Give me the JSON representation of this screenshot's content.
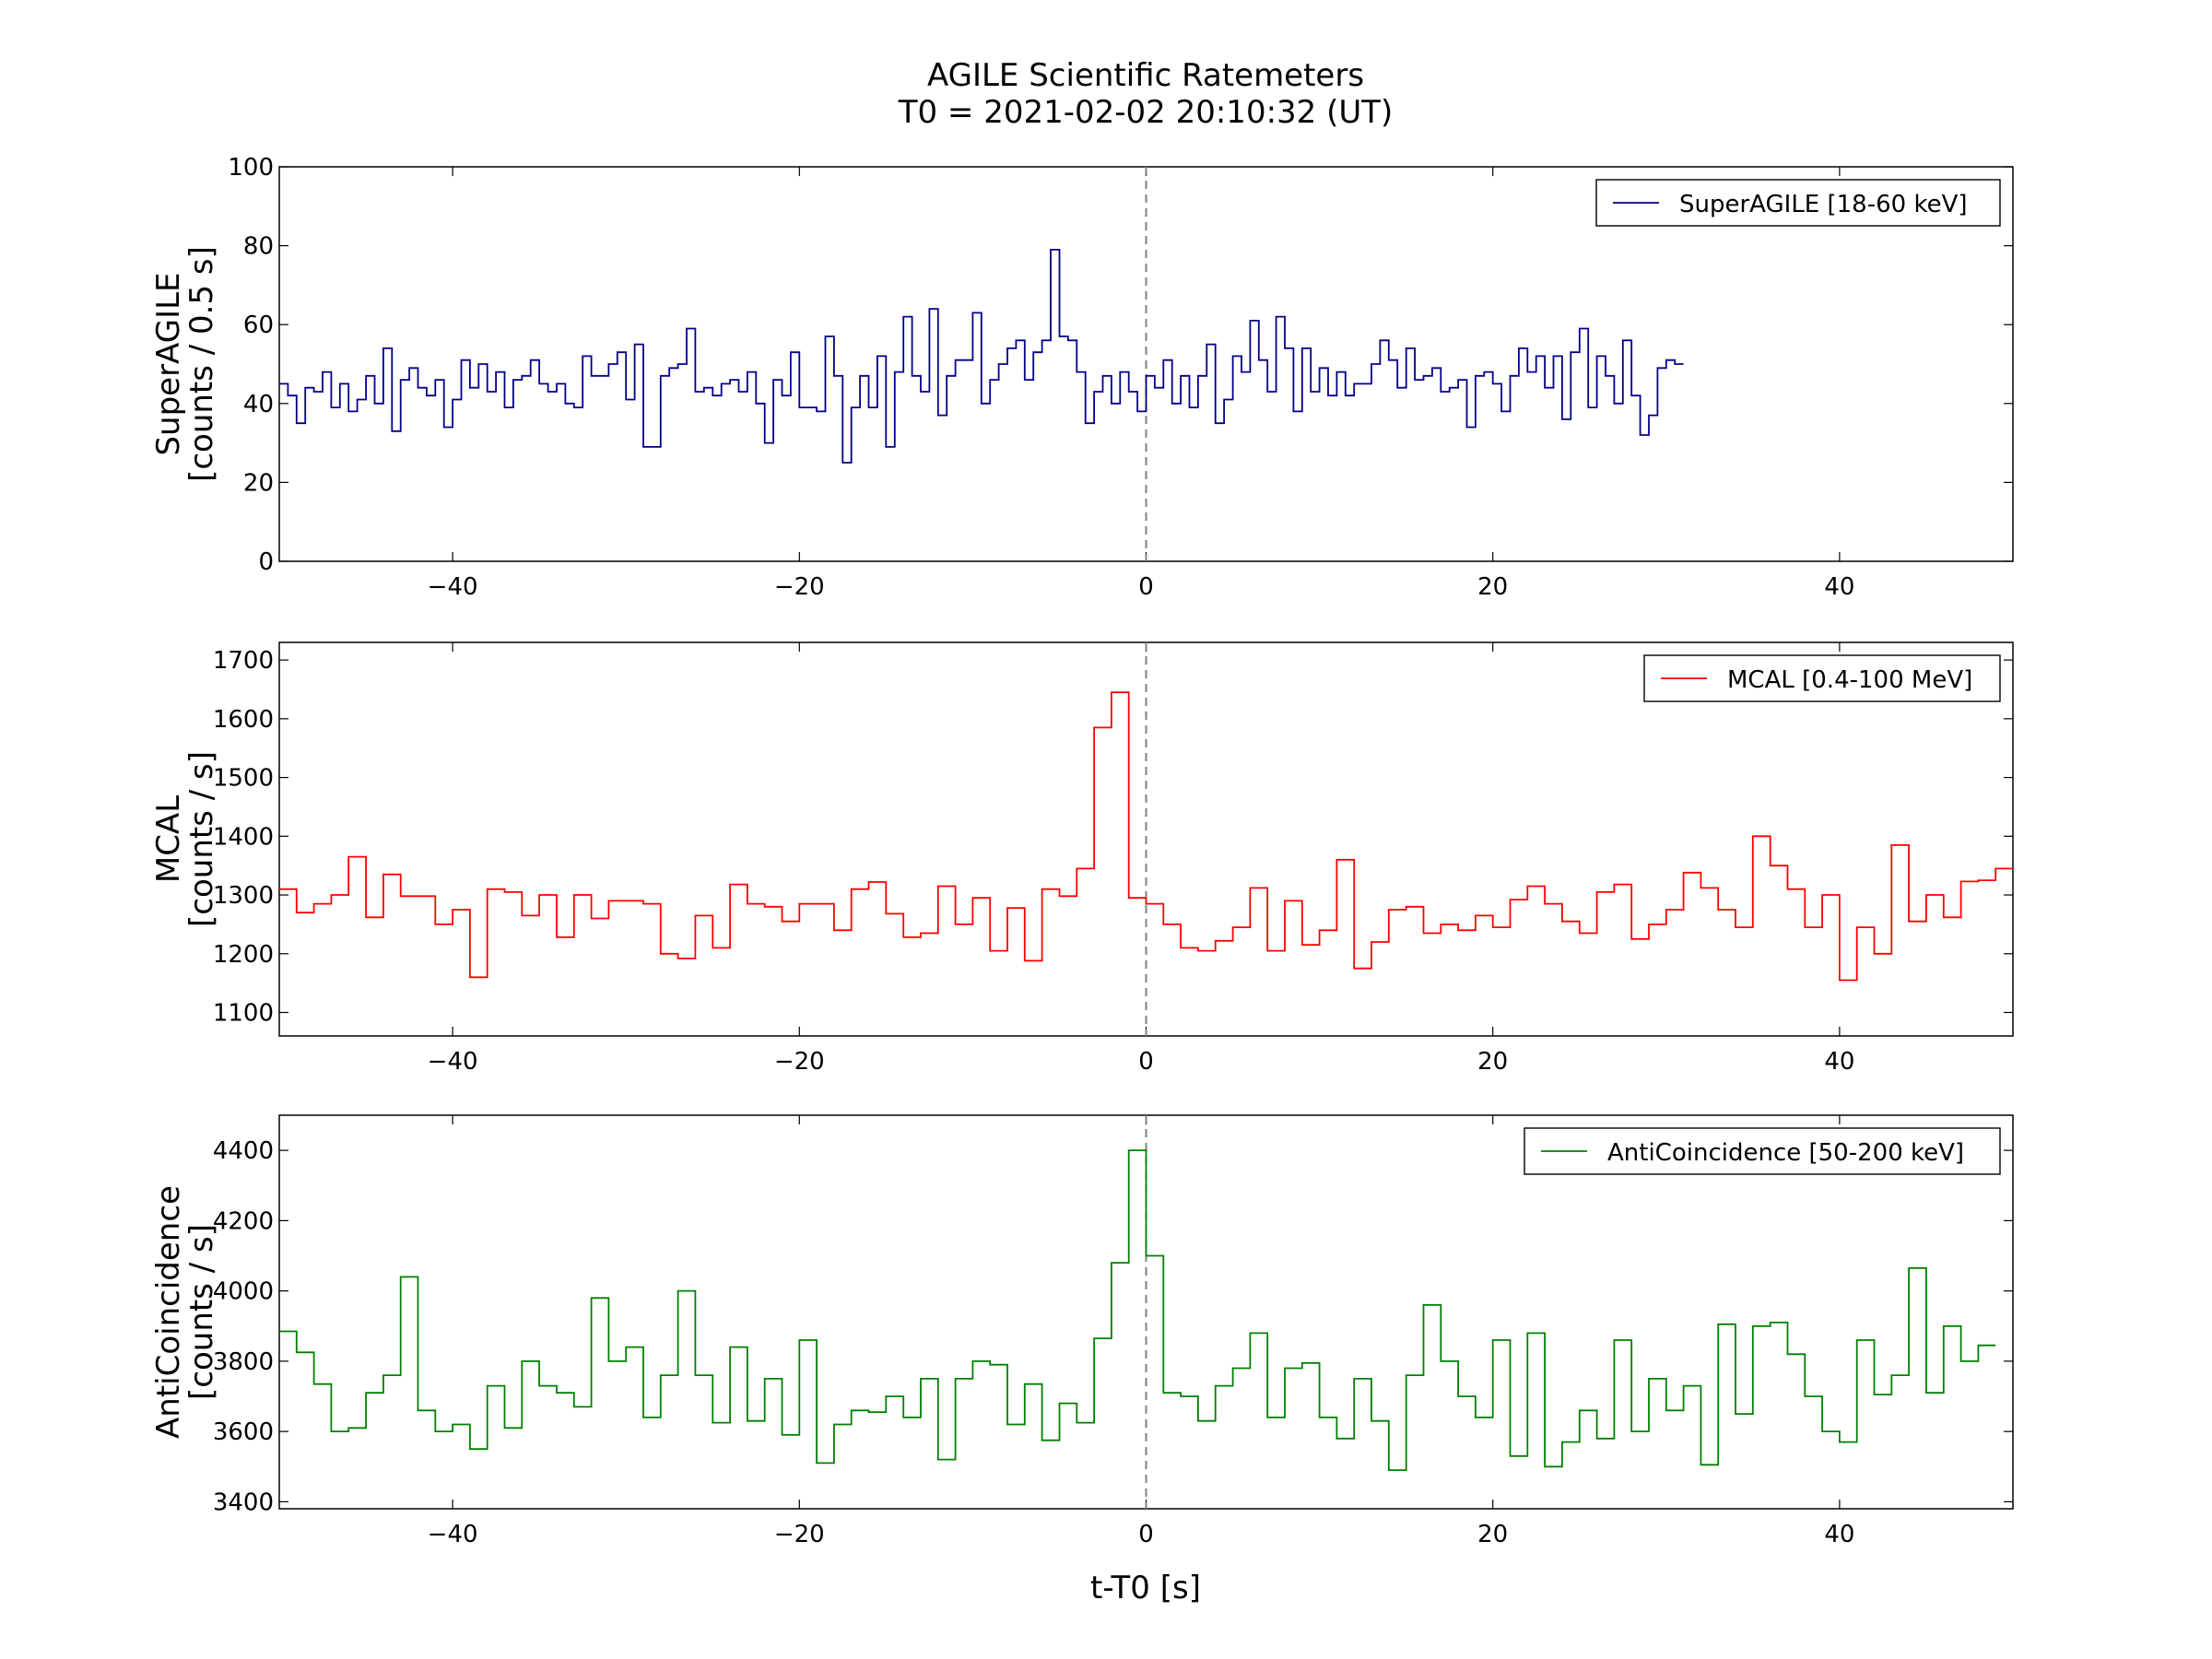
{
  "figure": {
    "title_line1": "AGILE Scientific Ratemeters",
    "title_line2": "T0 = 2021-02-02 20:10:32 (UT)",
    "xlabel": "t-T0 [s]"
  },
  "chart_data": [
    {
      "type": "line",
      "drawstyle": "steps",
      "legend": "SuperAGILE [18-60 keV]",
      "legend_position": "top-right",
      "ylabel_line1": "SuperAGILE",
      "ylabel_line2": "[counts / 0.5 s]",
      "color": "#00008b",
      "xlim": [
        -50,
        50
      ],
      "ylim": [
        0,
        100
      ],
      "xticks": [
        -40,
        -20,
        0,
        20,
        40
      ],
      "yticks": [
        0,
        20,
        40,
        60,
        80,
        100
      ],
      "x_start": -50,
      "bin_width": 0.5,
      "values": [
        45,
        42,
        35,
        44,
        43,
        48,
        39,
        45,
        38,
        41,
        47,
        40,
        54,
        33,
        46,
        49,
        44,
        42,
        46,
        34,
        41,
        51,
        44,
        50,
        43,
        48,
        39,
        46,
        47,
        51,
        45,
        43,
        45,
        40,
        39,
        52,
        47,
        47,
        50,
        53,
        41,
        55,
        29,
        29,
        47,
        49,
        50,
        59,
        43,
        44,
        42,
        45,
        46,
        43,
        48,
        40,
        30,
        46,
        42,
        53,
        39,
        39,
        38,
        57,
        47,
        25,
        39,
        47,
        39,
        52,
        29,
        48,
        62,
        47,
        43,
        64,
        37,
        47,
        51,
        51,
        63,
        40,
        46,
        50,
        54,
        56,
        46,
        53,
        56,
        79,
        57,
        56,
        48,
        35,
        43,
        47,
        40,
        48,
        43,
        38,
        47,
        44,
        51,
        40,
        47,
        39,
        47,
        55,
        35,
        41,
        52,
        48,
        61,
        51,
        43,
        62,
        54,
        38,
        54,
        43,
        49,
        42,
        48,
        42,
        45,
        45,
        50,
        56,
        51,
        44,
        54,
        46,
        47,
        49,
        43,
        44,
        46,
        34,
        47,
        48,
        45,
        38,
        47,
        54,
        48,
        52,
        44,
        52,
        36,
        53,
        59,
        39,
        52,
        47,
        40,
        56,
        42,
        32,
        37,
        49,
        51,
        50
      ]
    },
    {
      "type": "line",
      "drawstyle": "steps",
      "legend": "MCAL [0.4-100 MeV]",
      "legend_position": "top-right",
      "ylabel_line1": "MCAL",
      "ylabel_line2": "[counts / s]",
      "color": "#ff0000",
      "xlim": [
        -50,
        50
      ],
      "ylim": [
        1060,
        1730
      ],
      "xticks": [
        -40,
        -20,
        0,
        20,
        40
      ],
      "yticks": [
        1100,
        1200,
        1300,
        1400,
        1500,
        1600,
        1700
      ],
      "x_start": -50,
      "bin_width": 1.0,
      "values": [
        1310,
        1270,
        1285,
        1300,
        1365,
        1262,
        1335,
        1298,
        1298,
        1250,
        1275,
        1160,
        1310,
        1305,
        1265,
        1300,
        1228,
        1300,
        1260,
        1290,
        1290,
        1285,
        1200,
        1192,
        1265,
        1210,
        1318,
        1285,
        1280,
        1255,
        1285,
        1285,
        1240,
        1310,
        1322,
        1268,
        1228,
        1235,
        1315,
        1250,
        1295,
        1205,
        1278,
        1188,
        1310,
        1298,
        1345,
        1585,
        1645,
        1295,
        1285,
        1250,
        1210,
        1205,
        1222,
        1245,
        1312,
        1205,
        1290,
        1215,
        1240,
        1360,
        1175,
        1220,
        1275,
        1280,
        1235,
        1250,
        1240,
        1265,
        1245,
        1292,
        1315,
        1285,
        1255,
        1235,
        1305,
        1318,
        1225,
        1250,
        1275,
        1338,
        1312,
        1275,
        1245,
        1400,
        1350,
        1310,
        1245,
        1300,
        1155,
        1245,
        1200,
        1385,
        1255,
        1300,
        1262,
        1323,
        1325,
        1345
      ]
    },
    {
      "type": "line",
      "drawstyle": "steps",
      "legend": "AntiCoincidence [50-200 keV]",
      "legend_position": "top-right",
      "ylabel_line1": "AntiCoincidence",
      "ylabel_line2": "[counts / s]",
      "color": "#008000",
      "xlim": [
        -50,
        50
      ],
      "ylim": [
        3380,
        4500
      ],
      "xticks": [
        -40,
        -20,
        0,
        20,
        40
      ],
      "yticks": [
        3400,
        3600,
        3800,
        4000,
        4200,
        4400
      ],
      "x_start": -50,
      "bin_width": 1.0,
      "values": [
        3885,
        3825,
        3735,
        3600,
        3610,
        3710,
        3760,
        4040,
        3660,
        3600,
        3620,
        3550,
        3730,
        3610,
        3800,
        3730,
        3710,
        3670,
        3980,
        3800,
        3840,
        3640,
        3760,
        4000,
        3760,
        3625,
        3840,
        3630,
        3750,
        3590,
        3860,
        3510,
        3620,
        3660,
        3655,
        3700,
        3640,
        3750,
        3520,
        3750,
        3800,
        3790,
        3620,
        3735,
        3575,
        3680,
        3625,
        3865,
        4080,
        4400,
        4100,
        3710,
        3700,
        3630,
        3730,
        3780,
        3880,
        3640,
        3780,
        3795,
        3640,
        3580,
        3750,
        3630,
        3490,
        3760,
        3960,
        3800,
        3700,
        3640,
        3860,
        3530,
        3880,
        3500,
        3570,
        3660,
        3580,
        3860,
        3600,
        3750,
        3660,
        3730,
        3505,
        3905,
        3650,
        3900,
        3910,
        3820,
        3700,
        3600,
        3570,
        3860,
        3705,
        3760,
        4065,
        3710,
        3900,
        3800,
        3845
      ]
    }
  ]
}
